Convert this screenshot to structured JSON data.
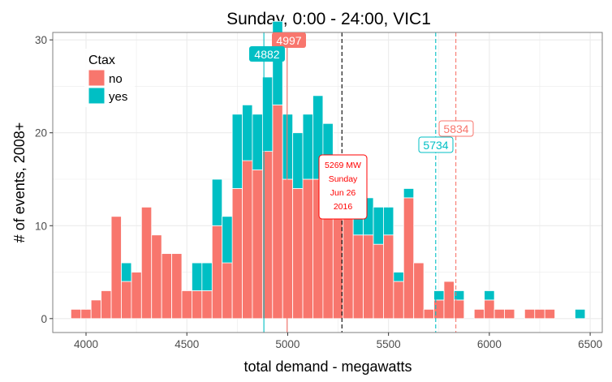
{
  "chart_data": {
    "type": "bar",
    "title": "Sunday, 0:00 - 24:00, VIC1",
    "xlabel": "total demand - megawatts",
    "ylabel": "# of events, 2008+",
    "xlim": [
      3835,
      6560
    ],
    "ylim": [
      -1.5,
      30.8
    ],
    "xticks": [
      4000,
      4500,
      5000,
      5500,
      6000,
      6500
    ],
    "yticks": [
      0,
      10,
      20,
      30
    ],
    "grid": true,
    "bin_width": 50,
    "legend": {
      "title": "Ctax",
      "position": "top-left",
      "items": [
        "no",
        "yes"
      ]
    },
    "colors": {
      "no": "#F8766D",
      "yes": "#00BFC4",
      "grid": "#ebebeb",
      "panel_border": "#7f7f7f",
      "annotation": "#ff0000",
      "vline_actual": "#000000"
    },
    "bins": [
      3950,
      4000,
      4050,
      4100,
      4150,
      4200,
      4250,
      4300,
      4350,
      4400,
      4450,
      4500,
      4550,
      4600,
      4650,
      4700,
      4750,
      4800,
      4850,
      4900,
      4950,
      5000,
      5050,
      5100,
      5150,
      5200,
      5250,
      5300,
      5350,
      5400,
      5450,
      5500,
      5550,
      5600,
      5650,
      5700,
      5750,
      5800,
      5850,
      5900,
      5950,
      6000,
      6050,
      6100,
      6150,
      6200,
      6250,
      6300,
      6350,
      6400,
      6450
    ],
    "series": [
      {
        "name": "no",
        "values": [
          1,
          1,
          2,
          3,
          11,
          4,
          5,
          12,
          9,
          7,
          7,
          3,
          3,
          3,
          10,
          6,
          14,
          17,
          16,
          18,
          23,
          15,
          14,
          15,
          15,
          14,
          12,
          11,
          9,
          9,
          8,
          9,
          4,
          13,
          6,
          1,
          2,
          4,
          2,
          0,
          1,
          2,
          1,
          1,
          0,
          1,
          1,
          1,
          0,
          0,
          0
        ]
      },
      {
        "name": "yes",
        "values": [
          0,
          0,
          0,
          0,
          0,
          2,
          0,
          0,
          0,
          0,
          0,
          0,
          3,
          3,
          5,
          5,
          8,
          6,
          6,
          8,
          9,
          7,
          6,
          7,
          9,
          7,
          5,
          3,
          2,
          4,
          4,
          3,
          1,
          1,
          0,
          0,
          1,
          0,
          1,
          0,
          0,
          1,
          0,
          0,
          0,
          0,
          0,
          0,
          0,
          0,
          1
        ]
      }
    ],
    "reference_lines": [
      {
        "x": 4882,
        "color": "#00BFC4",
        "dashed": false
      },
      {
        "x": 4997,
        "color": "#F8766D",
        "dashed": false
      },
      {
        "x": 5269,
        "color": "#000000",
        "dashed": true
      },
      {
        "x": 5734,
        "color": "#00BFC4",
        "dashed": true
      },
      {
        "x": 5834,
        "color": "#F8766D",
        "dashed": true
      }
    ],
    "annotations": {
      "median_no": "4997",
      "median_yes": "4882",
      "p95_no": "5834",
      "p95_yes": "5734",
      "actual": [
        "5269 MW",
        "Sunday",
        "Jun 26",
        "2016"
      ]
    }
  }
}
